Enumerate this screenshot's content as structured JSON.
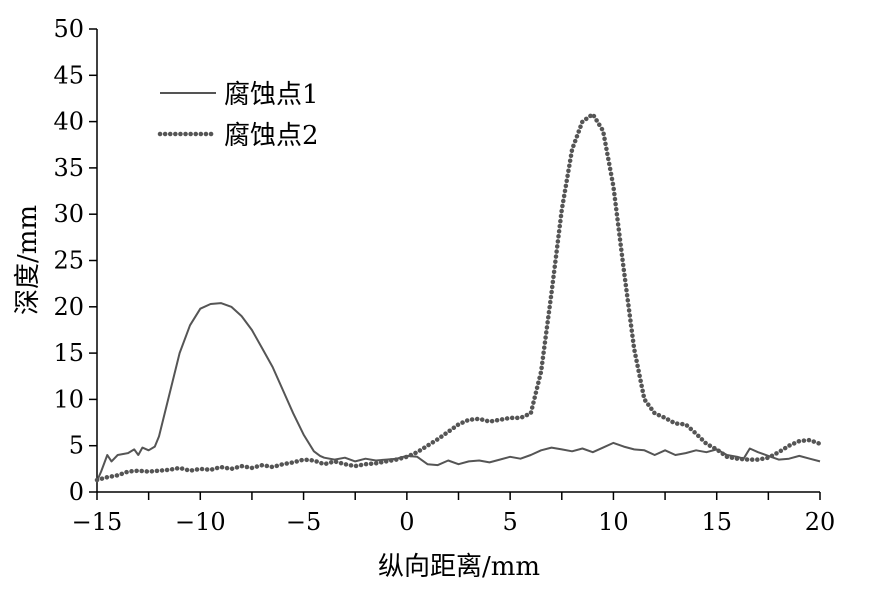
{
  "chart_data": {
    "type": "line",
    "title": "",
    "xlabel": "纵向距离/mm",
    "ylabel": "深度/mm",
    "xlim": [
      -15,
      20
    ],
    "ylim": [
      0,
      50
    ],
    "xticks": [
      -15,
      -10,
      -5,
      0,
      5,
      10,
      15,
      20
    ],
    "xtick_labels": [
      "−15",
      "−10",
      "−5",
      "0",
      "5",
      "10",
      "15",
      "20"
    ],
    "yticks": [
      0,
      5,
      10,
      15,
      20,
      25,
      30,
      35,
      40,
      45,
      50
    ],
    "ytick_labels": [
      "0",
      "5",
      "10",
      "15",
      "20",
      "25",
      "30",
      "35",
      "40",
      "45",
      "50"
    ],
    "grid": false,
    "legend_position": "top-left",
    "series": [
      {
        "name": "腐蚀点1",
        "style": "solid",
        "color": "#555555",
        "x": [
          -15,
          -14.8,
          -14.5,
          -14.3,
          -14,
          -13.5,
          -13.2,
          -13,
          -12.8,
          -12.5,
          -12.2,
          -12,
          -11.5,
          -11,
          -10.5,
          -10,
          -9.5,
          -9,
          -8.5,
          -8,
          -7.5,
          -7,
          -6.5,
          -6,
          -5.5,
          -5,
          -4.5,
          -4.2,
          -4,
          -3.5,
          -3,
          -2.5,
          -2,
          -1.5,
          -1,
          -0.5,
          0,
          0.5,
          1,
          1.5,
          2,
          2.5,
          3,
          3.5,
          4,
          4.5,
          5,
          5.5,
          6,
          6.5,
          7,
          7.5,
          8,
          8.5,
          9,
          9.5,
          10,
          10.5,
          11,
          11.5,
          12,
          12.5,
          13,
          13.5,
          14,
          14.5,
          15,
          15.5,
          16,
          16.3,
          16.6,
          17,
          17.5,
          18,
          18.5,
          19,
          19.5,
          20
        ],
        "y": [
          1.2,
          2.2,
          4.0,
          3.3,
          4.0,
          4.2,
          4.6,
          4.0,
          4.8,
          4.5,
          4.9,
          6.0,
          10.5,
          15.0,
          18.0,
          19.8,
          20.3,
          20.4,
          20.0,
          19.0,
          17.5,
          15.5,
          13.5,
          11.0,
          8.5,
          6.2,
          4.4,
          3.9,
          3.7,
          3.5,
          3.7,
          3.3,
          3.6,
          3.4,
          3.5,
          3.6,
          3.9,
          3.8,
          3.0,
          2.9,
          3.4,
          3.0,
          3.3,
          3.4,
          3.2,
          3.5,
          3.8,
          3.6,
          4.0,
          4.5,
          4.8,
          4.6,
          4.4,
          4.7,
          4.3,
          4.8,
          5.3,
          4.9,
          4.6,
          4.5,
          4.0,
          4.5,
          4.0,
          4.2,
          4.5,
          4.3,
          4.6,
          4.0,
          3.8,
          3.6,
          4.7,
          4.3,
          3.9,
          3.5,
          3.6,
          3.9,
          3.6,
          3.3
        ]
      },
      {
        "name": "腐蚀点2",
        "style": "dotted",
        "color": "#555555",
        "x": [
          -15,
          -14.5,
          -14,
          -13.5,
          -13,
          -12.5,
          -12,
          -11.5,
          -11,
          -10.5,
          -10,
          -9.5,
          -9,
          -8.5,
          -8,
          -7.5,
          -7,
          -6.5,
          -6,
          -5.5,
          -5,
          -4.5,
          -4,
          -3.5,
          -3,
          -2.5,
          -2,
          -1.5,
          -1,
          -0.5,
          0,
          0.5,
          1,
          1.5,
          2,
          2.5,
          3,
          3.5,
          4,
          4.5,
          5,
          5.5,
          6,
          6.5,
          7,
          7.5,
          8,
          8.5,
          9,
          9.5,
          10,
          10.5,
          11,
          11.5,
          12,
          12.5,
          13,
          13.5,
          14,
          14.5,
          15,
          15.5,
          16,
          16.5,
          17,
          17.5,
          18,
          18.5,
          19,
          19.5,
          20
        ],
        "y": [
          1.3,
          1.6,
          1.8,
          2.2,
          2.3,
          2.2,
          2.3,
          2.4,
          2.6,
          2.3,
          2.5,
          2.4,
          2.7,
          2.5,
          2.8,
          2.6,
          2.9,
          2.7,
          3.0,
          3.2,
          3.5,
          3.4,
          3.0,
          3.3,
          3.0,
          2.8,
          3.0,
          3.1,
          3.3,
          3.5,
          3.8,
          4.3,
          5.0,
          5.7,
          6.5,
          7.3,
          7.8,
          7.9,
          7.6,
          7.8,
          8.0,
          8.0,
          8.5,
          13.0,
          21.5,
          30.5,
          37.0,
          40.0,
          40.8,
          39.0,
          33.0,
          24.0,
          15.5,
          10.0,
          8.5,
          8.0,
          7.4,
          7.3,
          6.3,
          5.2,
          4.6,
          3.8,
          3.6,
          3.5,
          3.5,
          3.7,
          4.3,
          5.0,
          5.5,
          5.6,
          5.2
        ]
      }
    ]
  }
}
